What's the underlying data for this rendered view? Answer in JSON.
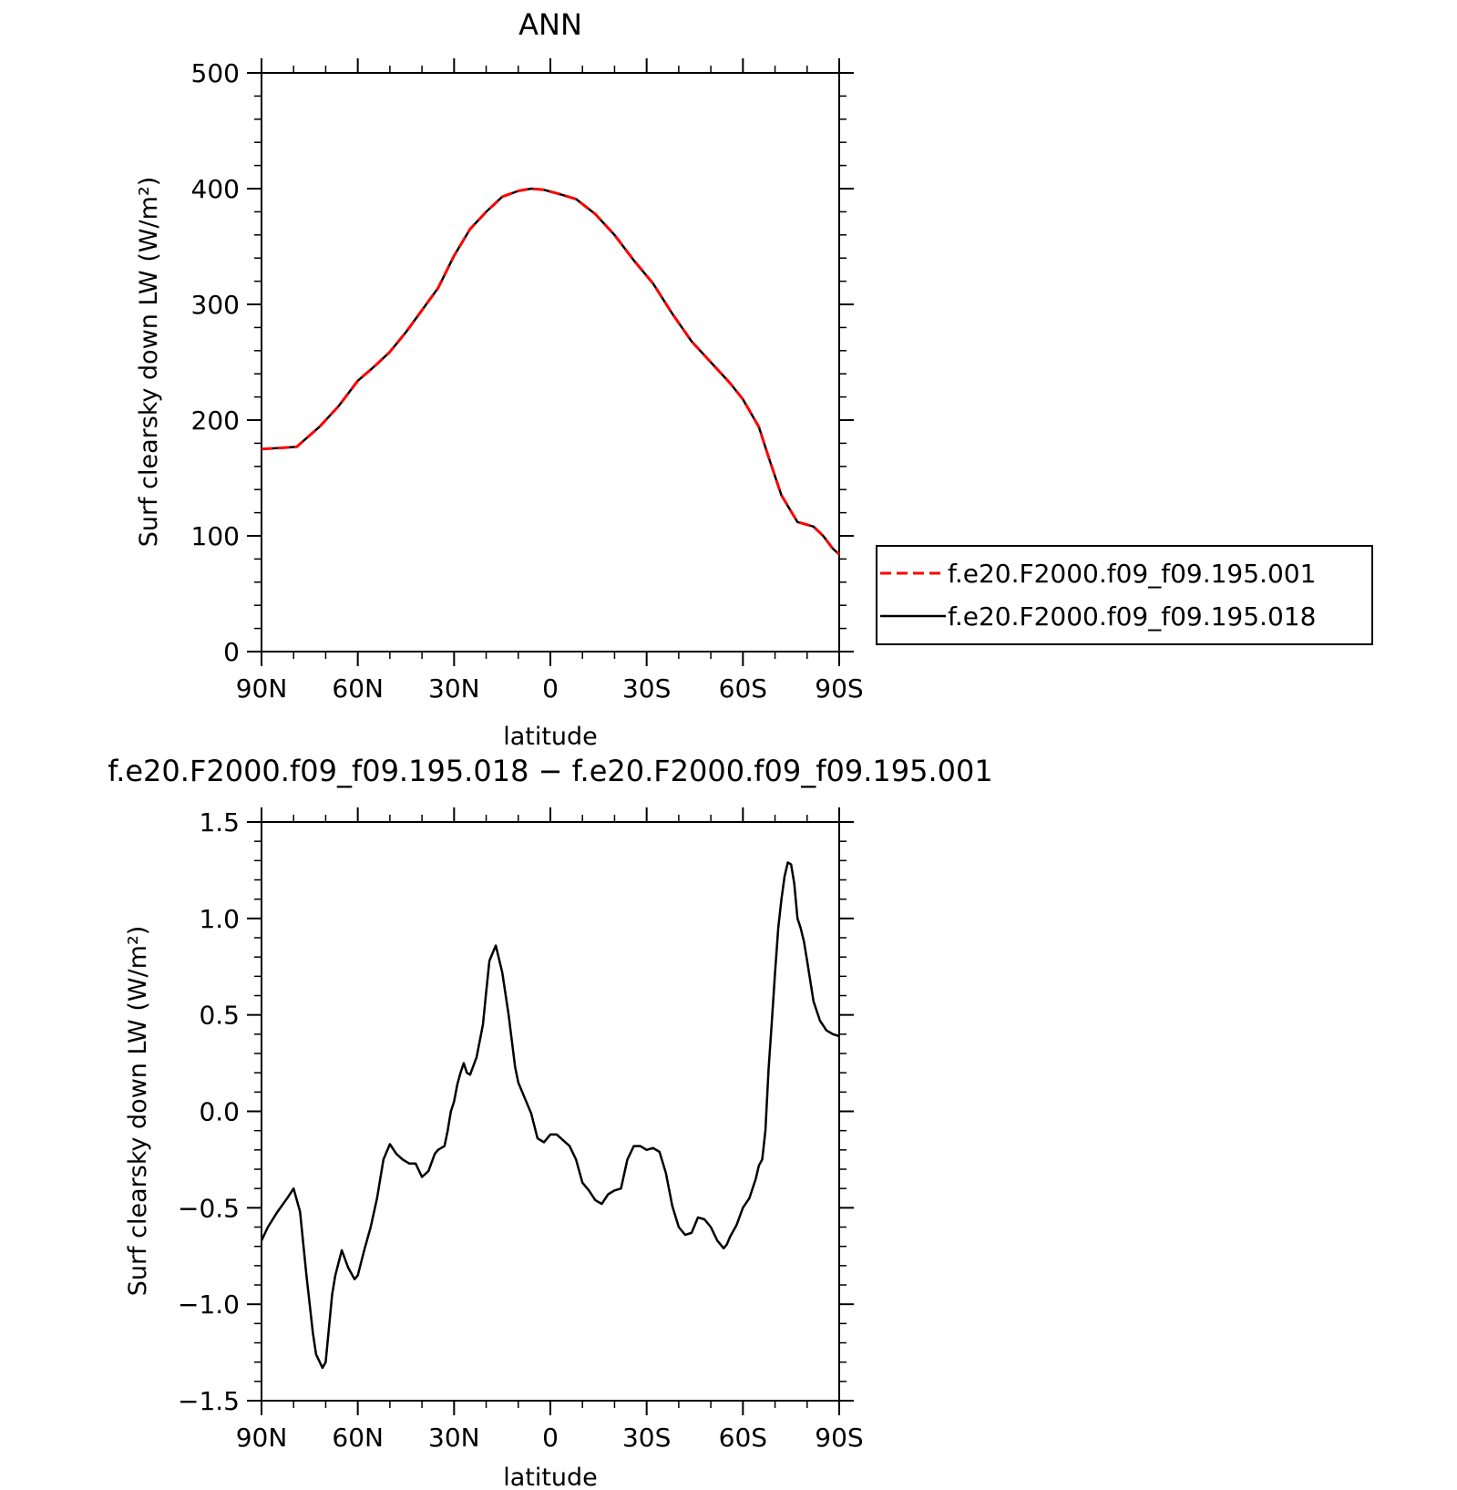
{
  "chart_data": [
    {
      "type": "line",
      "title": "ANN",
      "xlabel": "latitude",
      "ylabel": "Surf clearsky down LW (W/m²)",
      "xlim": [
        90,
        -90
      ],
      "ylim": [
        0,
        500
      ],
      "yticks": [
        0,
        100,
        200,
        300,
        400,
        500
      ],
      "xtick_values": [
        90,
        60,
        30,
        0,
        -30,
        -60,
        -90
      ],
      "xtick_labels": [
        "90N",
        "60N",
        "30N",
        "0",
        "30S",
        "60S",
        "90S"
      ],
      "legend": "outside-right",
      "series": [
        {
          "name": "f.e20.F2000.f09_f09.195.001",
          "color": "#ff0000",
          "style": "dashed",
          "x": [
            90,
            84,
            79,
            72,
            66,
            60,
            55,
            50,
            45,
            40,
            35,
            30,
            25,
            20,
            15,
            10,
            6,
            2,
            -2,
            -8,
            -14,
            -20,
            -26,
            -32,
            -38,
            -44,
            -50,
            -56,
            -60,
            -65,
            -68,
            -72,
            -77,
            -82,
            -85,
            -88,
            -90
          ],
          "y": [
            175,
            176,
            177,
            194,
            212,
            234,
            246,
            259,
            276,
            295,
            314,
            342,
            365,
            380,
            393,
            398,
            400,
            399,
            396,
            391,
            378,
            360,
            338,
            318,
            292,
            268,
            250,
            232,
            218,
            194,
            168,
            135,
            112,
            108,
            100,
            89,
            84
          ]
        },
        {
          "name": "f.e20.F2000.f09_f09.195.018",
          "color": "#000000",
          "style": "solid",
          "x": [
            90,
            84,
            79,
            72,
            66,
            60,
            55,
            50,
            45,
            40,
            35,
            30,
            25,
            20,
            15,
            10,
            6,
            2,
            -2,
            -8,
            -14,
            -20,
            -26,
            -32,
            -38,
            -44,
            -50,
            -56,
            -60,
            -65,
            -68,
            -72,
            -77,
            -82,
            -85,
            -88,
            -90
          ],
          "y": [
            175,
            176,
            177,
            194,
            212,
            234,
            246,
            259,
            276,
            295,
            314,
            342,
            365,
            380,
            393,
            398,
            400,
            399,
            396,
            391,
            378,
            360,
            338,
            318,
            292,
            268,
            250,
            232,
            218,
            194,
            168,
            135,
            112,
            108,
            100,
            89,
            84
          ]
        }
      ]
    },
    {
      "type": "line",
      "title": "f.e20.F2000.f09_f09.195.018 − f.e20.F2000.f09_f09.195.001",
      "xlabel": "latitude",
      "ylabel": "Surf clearsky down LW (W/m²)",
      "xlim": [
        90,
        -90
      ],
      "ylim": [
        -1.5,
        1.5
      ],
      "yticks": [
        -1.5,
        -1.0,
        -0.5,
        0.0,
        0.5,
        1.0,
        1.5
      ],
      "ytick_labels": [
        "−1.5",
        "−1.0",
        "−0.5",
        "0.0",
        "0.5",
        "1.0",
        "1.5"
      ],
      "xtick_values": [
        90,
        60,
        30,
        0,
        -30,
        -60,
        -90
      ],
      "xtick_labels": [
        "90N",
        "60N",
        "30N",
        "0",
        "30S",
        "60S",
        "90S"
      ],
      "series": [
        {
          "color": "#000000",
          "style": "solid",
          "x": [
            90,
            88,
            85,
            82,
            80,
            78,
            76,
            74,
            73,
            71,
            70,
            68,
            67,
            65,
            63,
            61,
            60,
            58,
            56,
            54,
            52,
            50,
            48,
            46,
            44,
            42,
            40,
            38,
            36,
            35,
            33,
            32,
            31,
            30,
            29,
            28,
            27,
            26,
            25,
            23,
            21,
            20,
            19,
            17,
            15,
            13,
            11,
            10,
            8,
            6,
            4,
            2,
            0,
            -2,
            -4,
            -6,
            -8,
            -10,
            -12,
            -14,
            -15,
            -16,
            -18,
            -20,
            -22,
            -24,
            -26,
            -28,
            -30,
            -32,
            -34,
            -36,
            -38,
            -40,
            -42,
            -44,
            -46,
            -48,
            -50,
            -52,
            -54,
            -55,
            -56,
            -58,
            -60,
            -62,
            -64,
            -65,
            -66,
            -67,
            -68,
            -69,
            -70,
            -71,
            -72,
            -73,
            -74,
            -75,
            -76,
            -77,
            -78,
            -79,
            -80,
            -82,
            -84,
            -86,
            -88,
            -90
          ],
          "y": [
            -0.67,
            -0.6,
            -0.52,
            -0.45,
            -0.4,
            -0.52,
            -0.85,
            -1.15,
            -1.26,
            -1.33,
            -1.3,
            -0.95,
            -0.85,
            -0.72,
            -0.81,
            -0.87,
            -0.85,
            -0.72,
            -0.6,
            -0.45,
            -0.25,
            -0.17,
            -0.22,
            -0.25,
            -0.27,
            -0.27,
            -0.34,
            -0.31,
            -0.22,
            -0.2,
            -0.18,
            -0.1,
            0.0,
            0.05,
            0.14,
            0.2,
            0.25,
            0.2,
            0.19,
            0.28,
            0.45,
            0.62,
            0.78,
            0.86,
            0.72,
            0.5,
            0.23,
            0.15,
            0.07,
            -0.01,
            -0.14,
            -0.16,
            -0.12,
            -0.12,
            -0.15,
            -0.18,
            -0.25,
            -0.37,
            -0.41,
            -0.46,
            -0.47,
            -0.48,
            -0.43,
            -0.41,
            -0.4,
            -0.25,
            -0.18,
            -0.18,
            -0.2,
            -0.19,
            -0.21,
            -0.32,
            -0.49,
            -0.6,
            -0.64,
            -0.63,
            -0.55,
            -0.56,
            -0.6,
            -0.67,
            -0.71,
            -0.69,
            -0.65,
            -0.59,
            -0.5,
            -0.45,
            -0.35,
            -0.28,
            -0.25,
            -0.1,
            0.22,
            0.46,
            0.72,
            0.95,
            1.1,
            1.22,
            1.29,
            1.28,
            1.18,
            1.0,
            0.95,
            0.88,
            0.78,
            0.57,
            0.47,
            0.42,
            0.4,
            0.39
          ]
        }
      ]
    }
  ]
}
